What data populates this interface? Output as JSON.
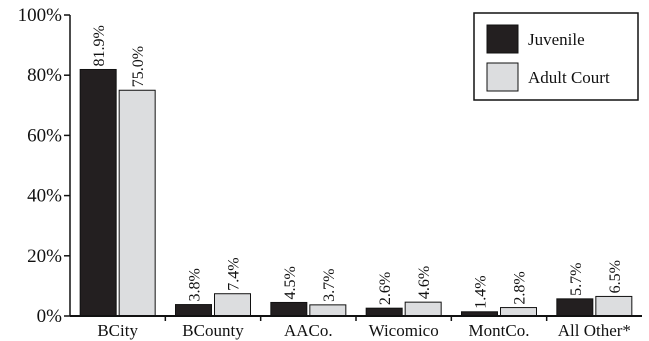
{
  "chart_data": {
    "type": "bar",
    "categories": [
      "BCity",
      "BCounty",
      "AACo.",
      "Wicomico",
      "MontCo.",
      "All Other*"
    ],
    "series": [
      {
        "name": "Juvenile",
        "color": "#231f20",
        "values": [
          81.9,
          3.8,
          4.5,
          2.6,
          1.4,
          5.7
        ],
        "labels": [
          "81.9%",
          "3.8%",
          "4.5%",
          "2.6%",
          "1.4%",
          "5.7%"
        ]
      },
      {
        "name": "Adult Court",
        "color": "#dcdddf",
        "values": [
          75.0,
          7.4,
          3.7,
          4.6,
          2.8,
          6.5
        ],
        "labels": [
          "75.0%",
          "7.4%",
          "3.7%",
          "4.6%",
          "2.8%",
          "6.5%"
        ]
      }
    ],
    "y_ticks": [
      "0%",
      "20%",
      "40%",
      "60%",
      "80%",
      "100%"
    ],
    "ylim": [
      0,
      100
    ],
    "title": "",
    "xlabel": "",
    "ylabel": "",
    "grid": false,
    "legend_position": "top-right"
  }
}
